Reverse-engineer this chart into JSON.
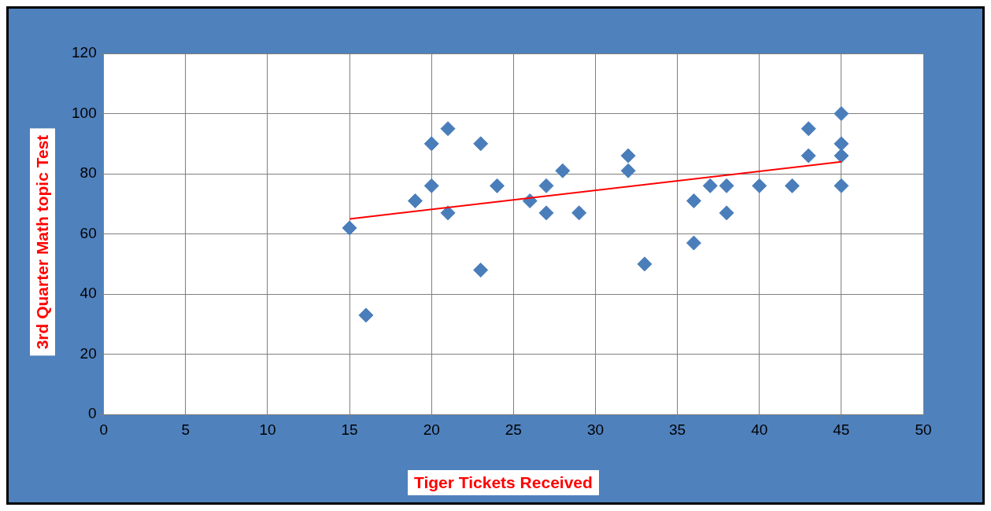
{
  "chart_data": {
    "type": "scatter",
    "xlabel": "Tiger Tickets Received",
    "ylabel": "3rd Quarter Math topic Test",
    "grid": true,
    "legend": false,
    "xlim": [
      0,
      50
    ],
    "xticks": [
      0,
      5,
      10,
      15,
      20,
      25,
      30,
      35,
      40,
      45,
      50
    ],
    "ylim": [
      0,
      120
    ],
    "yticks": [
      0,
      20,
      40,
      60,
      80,
      100,
      120
    ],
    "series": [
      {
        "type": "scatter",
        "marker": "diamond",
        "color": "#4a7ebb",
        "x": [
          15,
          16,
          19,
          20,
          20,
          21,
          21,
          23,
          23,
          24,
          26,
          27,
          27,
          28,
          29,
          32,
          32,
          33,
          36,
          36,
          37,
          38,
          38,
          40,
          42,
          43,
          43,
          45,
          45,
          45,
          45
        ],
        "values": [
          62,
          33,
          71,
          90,
          76,
          95,
          67,
          90,
          48,
          76,
          71,
          76,
          67,
          81,
          67,
          86,
          81,
          50,
          71,
          57,
          76,
          76,
          67,
          76,
          76,
          95,
          86,
          100,
          90,
          86,
          76
        ]
      },
      {
        "type": "line",
        "color": "#ff0000",
        "x": [
          15,
          45
        ],
        "values": [
          65,
          84
        ]
      }
    ]
  }
}
